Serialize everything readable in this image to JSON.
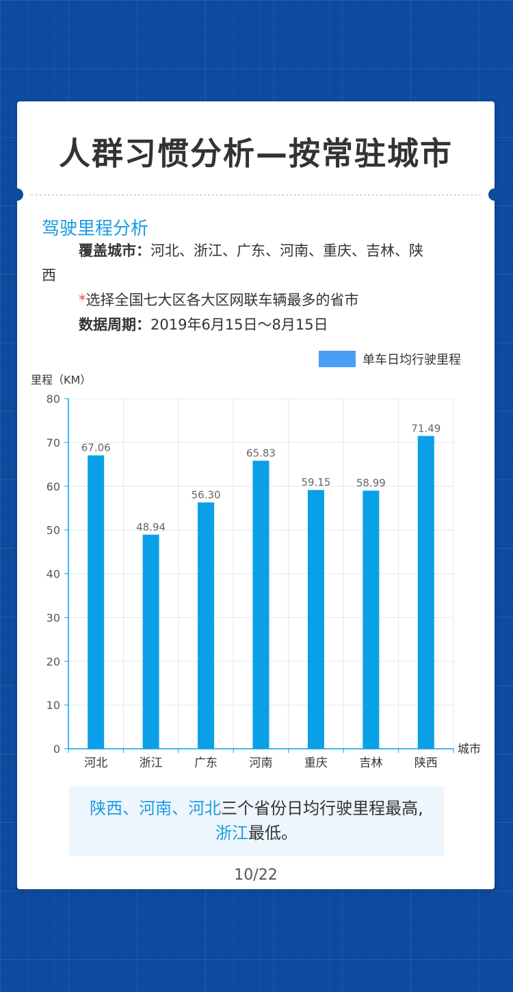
{
  "title": "人群习惯分析—按常驻城市",
  "section_title": "驾驶里程分析",
  "coverage_label": "覆盖城市：",
  "coverage_line1": "河北、浙江、广东、河南、重庆、吉林、陕",
  "coverage_line2": "西",
  "selection_star": "*",
  "selection_text": "选择全国七大区各大区网联车辆最多的省市",
  "period_label": "数据周期：",
  "period_value": "2019年6月15日～8月15日",
  "chart_data": {
    "type": "bar",
    "categories": [
      "河北",
      "浙江",
      "广东",
      "河南",
      "重庆",
      "吉林",
      "陕西"
    ],
    "series": [
      {
        "name": "单车日均行驶里程",
        "values": [
          67.06,
          48.94,
          56.3,
          65.83,
          59.15,
          58.99,
          71.49
        ],
        "labels": [
          "67.06",
          "48.94",
          "56.30",
          "65.83",
          "59.15",
          "58.99",
          "71.49"
        ]
      }
    ],
    "ylabel": "里程（KM）",
    "xlabel": "城市",
    "ylim": [
      0,
      80
    ],
    "yticks": [
      "0",
      "10",
      "20",
      "30",
      "40",
      "50",
      "60",
      "70",
      "80"
    ],
    "grid": true,
    "legend_position": "top-right",
    "bar_color": "#0aa0e8",
    "legend_color": "#4a9ef5"
  },
  "note": {
    "highlight1": "陕西、河南、河北",
    "text1": "三个省份日均行驶里程最高,",
    "highlight2": "浙江",
    "text2": "最低。"
  },
  "page_number": "10/22"
}
